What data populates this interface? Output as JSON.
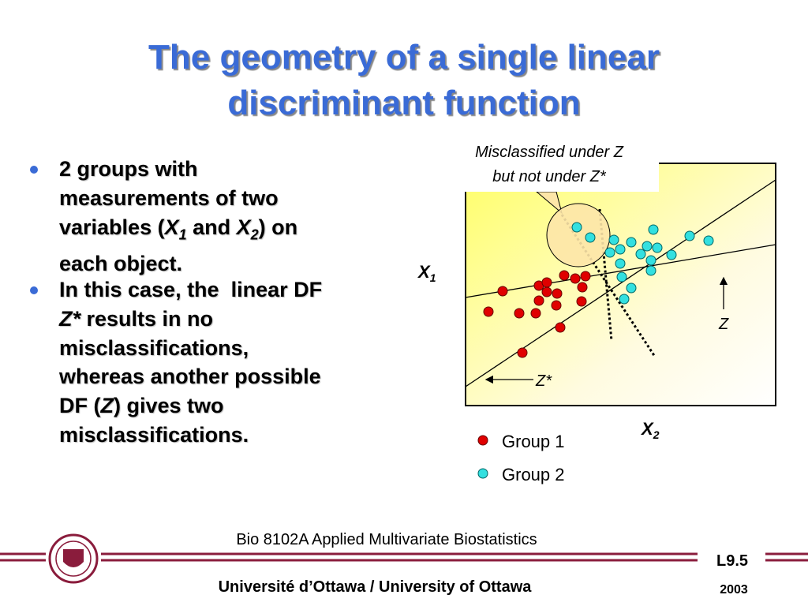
{
  "title": [
    "The geometry of a single linear",
    "discriminant function"
  ],
  "bullets": [
    [
      [
        "2 groups with"
      ],
      [
        "measurements of two"
      ],
      [
        "variables (",
        "X",
        "1",
        " and ",
        "X",
        "2",
        ") on"
      ],
      [
        "each object."
      ]
    ],
    [
      [
        "In this case, the  linear DF"
      ],
      [
        "Z*",
        " results in no"
      ],
      [
        "misclassifications,"
      ],
      [
        "whereas another possible"
      ],
      [
        "DF (",
        "Z",
        ") gives two"
      ],
      [
        "misclassifications."
      ]
    ]
  ],
  "diagram": {
    "callout": [
      "Misclassified under Z",
      "but not  under Z*"
    ],
    "x1_label": [
      "X",
      "1"
    ],
    "x2_label": [
      "X",
      "2"
    ],
    "z_label": "Z",
    "zstar_label": "Z*",
    "legend": [
      "Group 1",
      "Group 2"
    ]
  },
  "footer": {
    "course": "Bio 8102A Applied Multivariate Biostatistics",
    "slide": "L9.5",
    "university": "Université d’Ottawa / University of Ottawa",
    "year": "2003"
  }
}
